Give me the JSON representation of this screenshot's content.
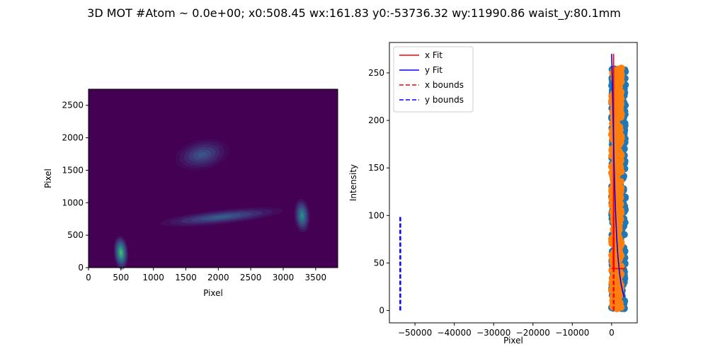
{
  "figure": {
    "title": "3D MOT #Atom ~ 0.0e+00; x0:508.45 wx:161.83 y0:-53736.32 wy:11990.86 waist_y:80.1mm"
  },
  "chart_data": [
    {
      "type": "heatmap",
      "xlabel": "Pixel",
      "ylabel": "Pixel",
      "xlim": [
        0,
        3840
      ],
      "ylim": [
        0,
        2748
      ],
      "xticks": [
        "0",
        "500",
        "1000",
        "1500",
        "2000",
        "2500",
        "3000",
        "3500"
      ],
      "xtick_values": [
        0,
        500,
        1000,
        1500,
        2000,
        2500,
        3000,
        3500
      ],
      "yticks": [
        "0",
        "500",
        "1000",
        "1500",
        "2000",
        "2500"
      ],
      "ytick_values": [
        0,
        500,
        1000,
        1500,
        2000,
        2500
      ],
      "colormap": "viridis",
      "features": [
        {
          "shape": "ellipse",
          "cx": 1750,
          "cy": 1740,
          "rx": 230,
          "ry": 75,
          "angle": -12,
          "intensity": 1.0
        },
        {
          "shape": "ellipse",
          "cx": 1750,
          "cy": 1740,
          "rx": 420,
          "ry": 230,
          "angle": -12,
          "intensity": 0.3
        },
        {
          "shape": "ellipse",
          "cx": 2050,
          "cy": 780,
          "rx": 950,
          "ry": 110,
          "angle": -6,
          "intensity": 0.35
        },
        {
          "shape": "ellipse",
          "cx": 500,
          "cy": 230,
          "rx": 110,
          "ry": 260,
          "angle": -4,
          "intensity": 0.75
        },
        {
          "shape": "ellipse",
          "cx": 3290,
          "cy": 800,
          "rx": 120,
          "ry": 260,
          "angle": -4,
          "intensity": 0.55
        }
      ]
    },
    {
      "type": "scatter",
      "xlabel": "Pixel",
      "ylabel": "Intensity",
      "xlim": [
        -56500,
        6500
      ],
      "ylim": [
        -13,
        282
      ],
      "xticks": [
        "−50000",
        "−40000",
        "−30000",
        "−20000",
        "−10000",
        "0"
      ],
      "xtick_values": [
        -50000,
        -40000,
        -30000,
        -20000,
        -10000,
        0
      ],
      "yticks": [
        "0",
        "50",
        "100",
        "150",
        "200",
        "250"
      ],
      "ytick_values": [
        0,
        50,
        100,
        150,
        200,
        250
      ],
      "legend_position": "top-left",
      "series": [
        {
          "name": "x Fit",
          "style": "line",
          "color": "#ff0000",
          "x": [
            0,
            200,
            400,
            450,
            500,
            550,
            600,
            800,
            1000,
            3500
          ],
          "y": [
            44,
            44,
            45,
            110,
            270,
            110,
            45,
            44,
            44,
            44
          ]
        },
        {
          "name": "y Fit",
          "style": "line",
          "color": "#0000ff",
          "x": [
            0,
            100,
            200,
            300,
            400,
            600,
            800,
            1000,
            1300,
            1600,
            2000,
            2400,
            2800,
            3200
          ],
          "y": [
            270,
            255,
            236,
            215,
            195,
            158,
            128,
            103,
            76,
            57,
            40,
            28,
            20,
            14
          ]
        },
        {
          "name": "x bounds",
          "style": "dashed",
          "color": "#ff0000",
          "x": [
            508,
            508
          ],
          "y": [
            0,
            100
          ]
        },
        {
          "name": "y bounds",
          "style": "dashed",
          "color": "#0000ff",
          "x": [
            -53736,
            -53736
          ],
          "y": [
            0,
            100
          ]
        },
        {
          "name": "",
          "style": "points",
          "color": "#1f77b4",
          "x_range": [
            0,
            3500
          ],
          "y_range": [
            2,
            255
          ],
          "count": 520
        },
        {
          "name": "",
          "style": "points",
          "color": "#ff7f0e",
          "x_range": [
            0,
            2500
          ],
          "y_range": [
            2,
            255
          ],
          "count": 420
        }
      ]
    }
  ]
}
